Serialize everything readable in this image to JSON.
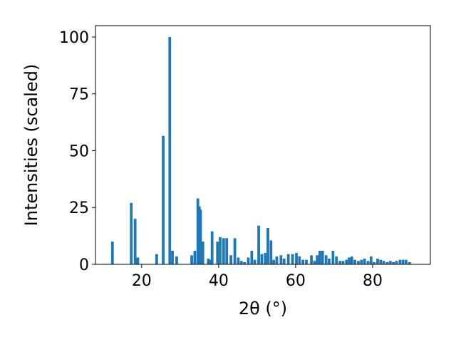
{
  "chart_data": {
    "type": "bar",
    "xlabel": "2θ (°)",
    "ylabel": "Intensities (scaled)",
    "xlim": [
      8,
      95
    ],
    "ylim": [
      0,
      105
    ],
    "xticks": [
      20,
      40,
      60,
      80
    ],
    "yticks": [
      0,
      25,
      50,
      75,
      100
    ],
    "grid": false,
    "bar_color": "#1f77b4",
    "bar_width": 0.7,
    "x": [
      12.4,
      17.3,
      18.3,
      19.0,
      23.9,
      25.6,
      27.3,
      28.0,
      29.1,
      33.0,
      33.8,
      34.6,
      35.0,
      35.3,
      35.9,
      37.3,
      37.8,
      38.3,
      39.7,
      40.4,
      41.3,
      42.1,
      43.2,
      44.2,
      45.1,
      45.9,
      46.7,
      47.7,
      48.6,
      49.4,
      50.4,
      51.2,
      52.1,
      52.8,
      53.6,
      54.3,
      55.1,
      56.2,
      57.0,
      58.1,
      59.2,
      60.2,
      61.0,
      61.9,
      62.8,
      64.1,
      64.9,
      65.6,
      66.3,
      67.0,
      67.9,
      68.7,
      69.7,
      70.6,
      71.5,
      72.3,
      73.2,
      73.9,
      74.6,
      75.4,
      76.3,
      77.1,
      77.9,
      78.8,
      79.6,
      80.4,
      81.3,
      82.1,
      82.9,
      83.8,
      84.6,
      85.4,
      86.2,
      87.1,
      87.9,
      88.7,
      89.6
    ],
    "values": [
      10,
      27,
      20,
      3,
      4.5,
      56.5,
      100,
      6,
      3.5,
      4,
      6,
      29,
      25.5,
      24,
      10,
      2.5,
      2,
      14.5,
      10,
      12,
      11.5,
      11.5,
      4,
      11.5,
      3,
      1.5,
      1,
      3,
      6,
      2,
      17,
      4.5,
      5,
      16,
      10.5,
      2,
      3.5,
      4,
      2.5,
      4.5,
      4.5,
      5,
      3.5,
      2,
      2,
      4,
      1.5,
      4,
      6,
      6,
      4,
      2.5,
      6,
      3.5,
      1.5,
      1.5,
      2,
      3,
      3.5,
      2,
      1.5,
      2,
      2.5,
      1.5,
      3.5,
      1,
      2.5,
      2,
      1.5,
      1,
      1.5,
      1,
      1.5,
      2,
      2,
      2,
      1
    ]
  }
}
